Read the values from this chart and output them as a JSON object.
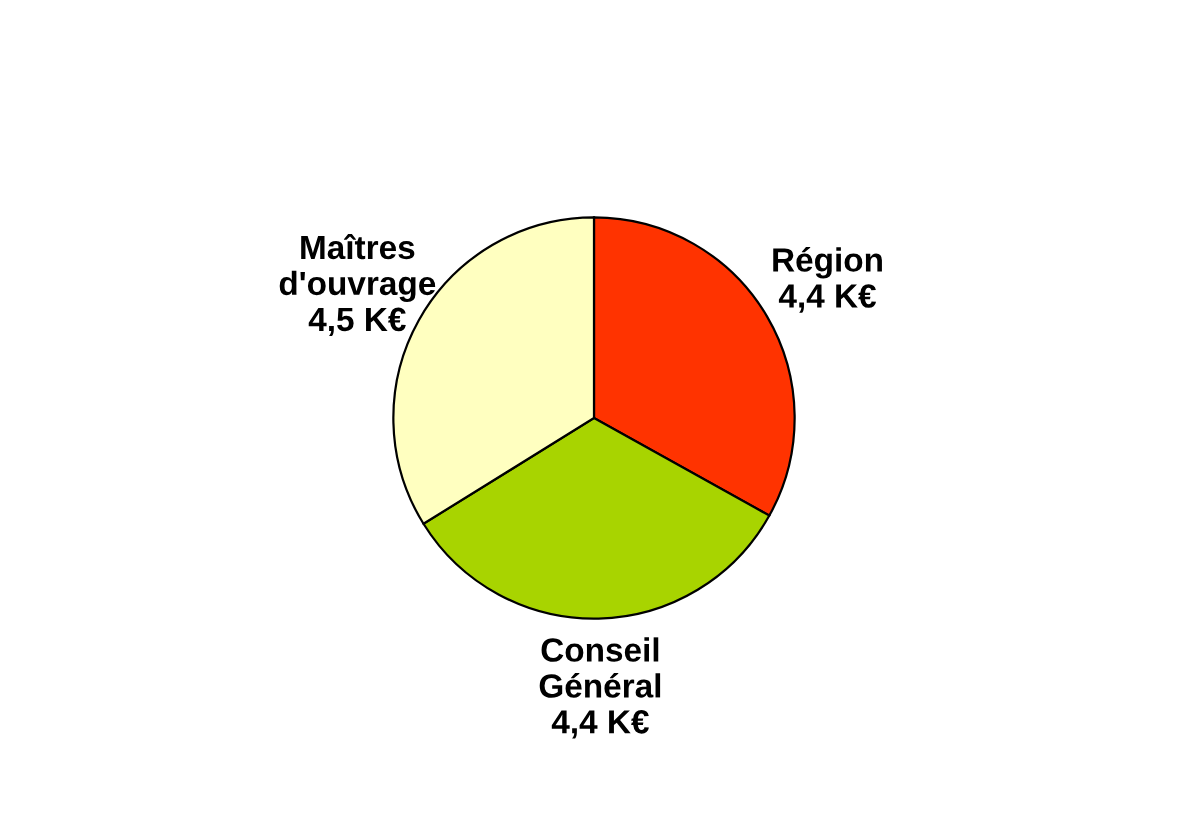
{
  "chart_data": {
    "type": "pie",
    "categories": [
      "Région",
      "Conseil\nGénéral",
      "Maîtres\nd'ouvrage"
    ],
    "values": [
      4.4,
      4.4,
      4.5
    ],
    "value_labels": [
      "4,4 K€",
      "4,4 K€",
      "4,5 K€"
    ],
    "colors": [
      "#ff3300",
      "#a8d400",
      "#ffffc0"
    ]
  }
}
